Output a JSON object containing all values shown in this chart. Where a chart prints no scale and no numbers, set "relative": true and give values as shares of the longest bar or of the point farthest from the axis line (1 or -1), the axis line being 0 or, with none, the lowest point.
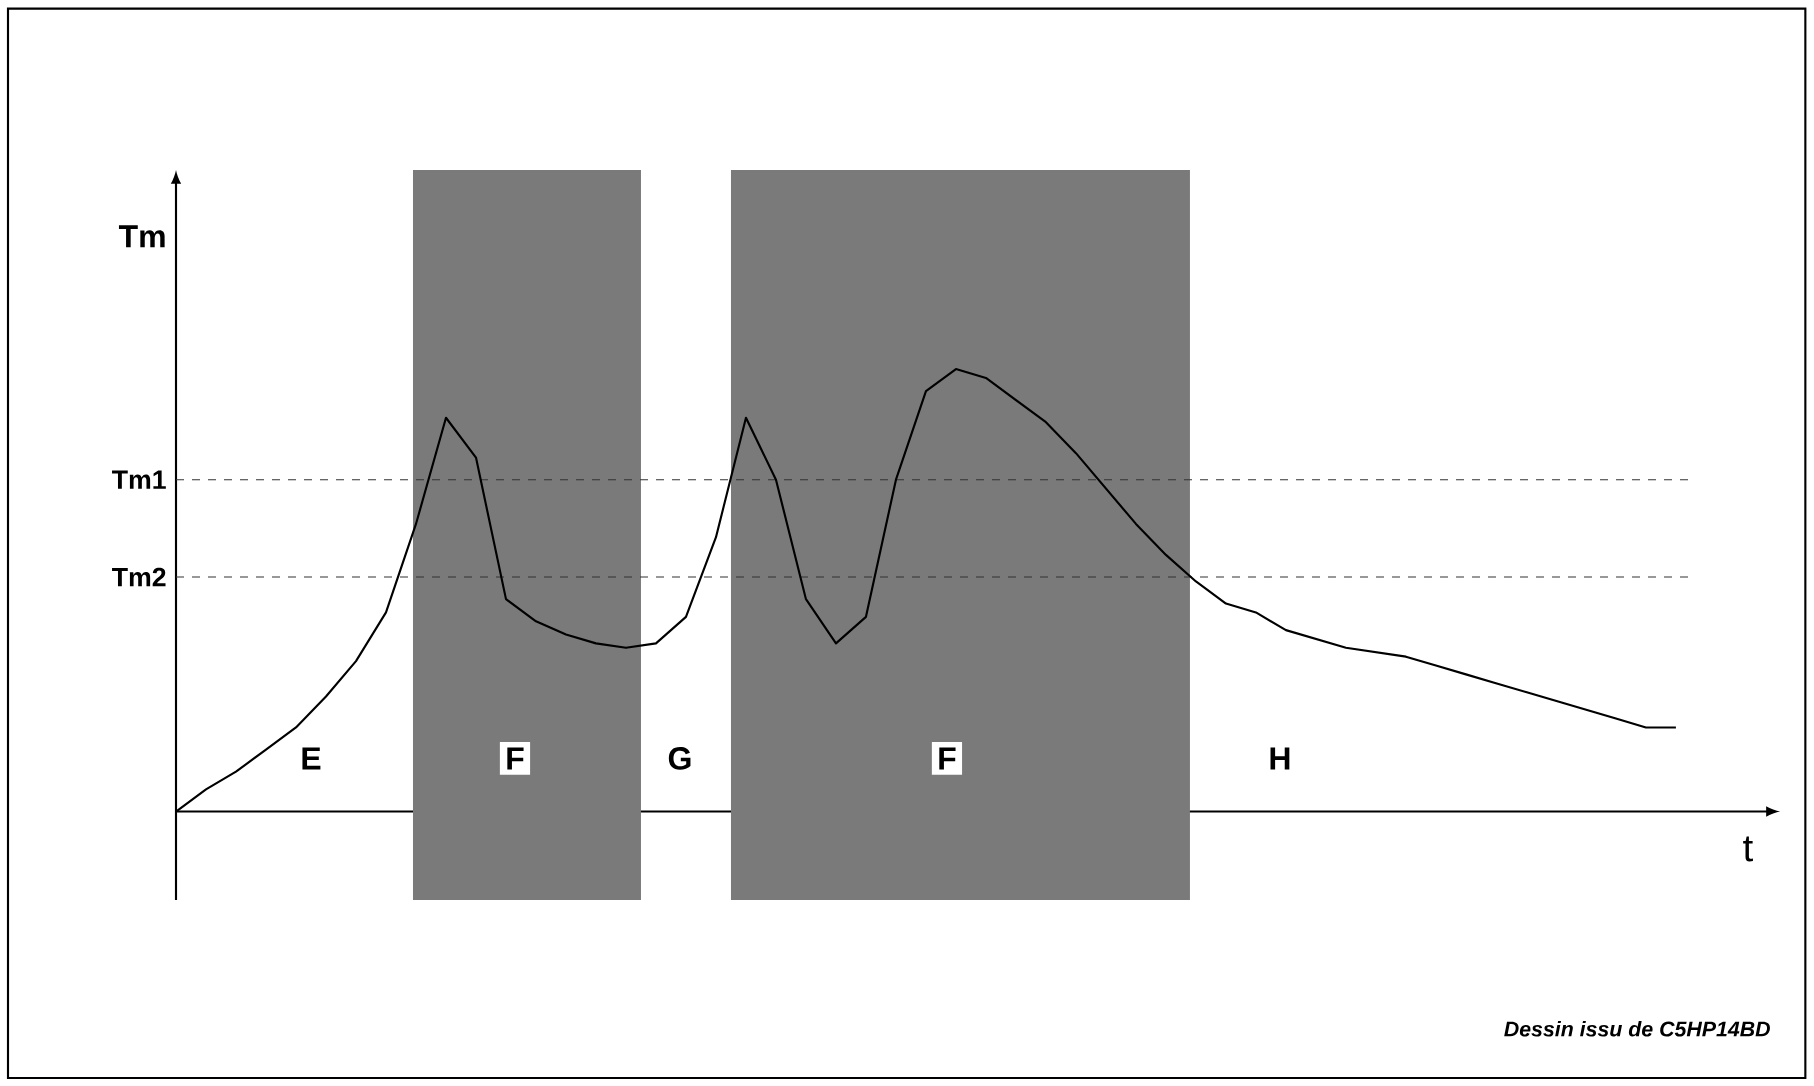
{
  "chart_data": {
    "type": "line",
    "relative": true,
    "xlabel": "t",
    "ylabel": "Tm",
    "color": "#000000",
    "categories": [
      null,
      null,
      null,
      null,
      null,
      null,
      null,
      null,
      null,
      null,
      null,
      null,
      null,
      null,
      null,
      null,
      null,
      null,
      null,
      null,
      null,
      null,
      null,
      null,
      null,
      null,
      null,
      null,
      null,
      null,
      null,
      null,
      null,
      null,
      null,
      null,
      null,
      null,
      null,
      null,
      null,
      null,
      null,
      null,
      null,
      null,
      null,
      null,
      null,
      null,
      null
    ],
    "values": [
      0,
      0.05,
      0.09,
      0.14,
      0.19,
      0.26,
      0.34,
      0.45,
      0.65,
      0.89,
      0.8,
      0.48,
      0.43,
      0.4,
      0.38,
      0.37,
      0.38,
      0.44,
      0.62,
      0.89,
      0.75,
      0.48,
      0.38,
      0.44,
      0.75,
      0.95,
      1,
      0.98,
      0.93,
      0.88,
      0.81,
      0.73,
      0.65,
      0.58,
      0.52,
      0.47,
      0.45,
      0.41,
      0.39,
      0.37,
      0.36,
      0.35,
      0.33,
      0.31,
      0.29,
      0.27,
      0.25,
      0.23,
      0.21,
      0.19,
      0.19
    ],
    "ref_lines": [
      {
        "axis": "y",
        "value": 0.75,
        "label": "Tm1",
        "color": "#333333",
        "line_style": "dashed"
      },
      {
        "axis": "y",
        "value": 0.53,
        "label": "Tm2",
        "color": "#333333",
        "line_style": "dashed"
      }
    ],
    "annotations": [
      "E",
      "F",
      "G",
      "F",
      "H",
      "Dessin issu de C5HP14BD"
    ]
  }
}
